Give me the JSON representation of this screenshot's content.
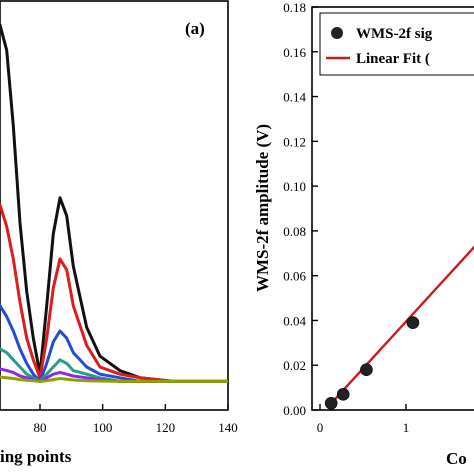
{
  "chart_data": [
    {
      "type": "line",
      "panel_label": "(a)",
      "xlabel": "ing points",
      "x_ticks": [
        "80",
        "100",
        "120",
        "140"
      ],
      "xlim": [
        60,
        140
      ],
      "ylim": [
        0,
        1
      ],
      "grid": false,
      "series": [
        {
          "color": "#111111",
          "x": [
            60,
            62,
            64,
            66,
            68,
            70,
            72,
            74,
            76,
            78,
            80,
            82,
            84,
            86,
            88,
            90,
            94,
            98,
            104,
            110,
            120,
            130,
            140
          ],
          "y": [
            0.68,
            0.8,
            0.92,
            0.99,
            1.0,
            0.93,
            0.72,
            0.45,
            0.26,
            0.13,
            0.03,
            0.22,
            0.42,
            0.52,
            0.47,
            0.33,
            0.16,
            0.08,
            0.04,
            0.02,
            0.01,
            0.01,
            0.01
          ]
        },
        {
          "color": "#dd1c1c",
          "x": [
            60,
            62,
            64,
            66,
            68,
            70,
            72,
            74,
            76,
            78,
            80,
            82,
            84,
            86,
            88,
            90,
            94,
            98,
            104,
            110,
            120,
            130,
            140
          ],
          "y": [
            0.33,
            0.38,
            0.46,
            0.5,
            0.5,
            0.44,
            0.35,
            0.23,
            0.13,
            0.07,
            0.02,
            0.13,
            0.27,
            0.35,
            0.32,
            0.22,
            0.11,
            0.05,
            0.03,
            0.02,
            0.01,
            0.01,
            0.01
          ]
        },
        {
          "color": "#2848d8",
          "x": [
            60,
            62,
            64,
            66,
            68,
            70,
            72,
            74,
            76,
            78,
            80,
            82,
            84,
            86,
            88,
            90,
            94,
            98,
            104,
            110,
            120,
            130,
            140
          ],
          "y": [
            0.14,
            0.16,
            0.19,
            0.22,
            0.22,
            0.19,
            0.15,
            0.1,
            0.06,
            0.03,
            0.01,
            0.06,
            0.12,
            0.15,
            0.13,
            0.09,
            0.05,
            0.03,
            0.02,
            0.01,
            0.01,
            0.01,
            0.01
          ]
        },
        {
          "color": "#2a9a8c",
          "x": [
            60,
            62,
            64,
            66,
            68,
            70,
            72,
            74,
            76,
            78,
            80,
            82,
            84,
            86,
            88,
            90,
            94,
            98,
            104,
            110,
            120,
            130,
            140
          ],
          "y": [
            0.07,
            0.08,
            0.09,
            0.1,
            0.1,
            0.09,
            0.07,
            0.05,
            0.03,
            0.02,
            0.01,
            0.03,
            0.05,
            0.07,
            0.06,
            0.04,
            0.03,
            0.02,
            0.01,
            0.01,
            0.01,
            0.01,
            0.01
          ]
        },
        {
          "color": "#8a2be2",
          "x": [
            60,
            62,
            64,
            66,
            68,
            70,
            72,
            74,
            76,
            78,
            80,
            82,
            84,
            86,
            88,
            90,
            94,
            98,
            104,
            110,
            120,
            130,
            140
          ],
          "y": [
            0.03,
            0.035,
            0.04,
            0.045,
            0.045,
            0.04,
            0.035,
            0.025,
            0.02,
            0.015,
            0.01,
            0.02,
            0.03,
            0.035,
            0.03,
            0.025,
            0.02,
            0.015,
            0.01,
            0.01,
            0.01,
            0.01,
            0.01
          ]
        },
        {
          "color": "#8fa000",
          "x": [
            60,
            62,
            64,
            66,
            68,
            70,
            72,
            74,
            76,
            78,
            80,
            82,
            84,
            86,
            88,
            90,
            94,
            98,
            104,
            110,
            120,
            130,
            140
          ],
          "y": [
            0.015,
            0.018,
            0.02,
            0.022,
            0.022,
            0.02,
            0.018,
            0.015,
            0.013,
            0.012,
            0.01,
            0.012,
            0.015,
            0.018,
            0.016,
            0.014,
            0.012,
            0.011,
            0.01,
            0.01,
            0.01,
            0.01,
            0.01
          ]
        }
      ]
    },
    {
      "type": "scatter",
      "ylabel": "WMS-2f amplitude (V)",
      "xlabel": "Co",
      "xlim": [
        0,
        2.1
      ],
      "ylim": [
        0,
        0.18
      ],
      "y_ticks": [
        "0.00",
        "0.02",
        "0.04",
        "0.06",
        "0.08",
        "0.10",
        "0.12",
        "0.14",
        "0.16",
        "0.18"
      ],
      "x_ticks": [
        "0",
        "1"
      ],
      "grid": false,
      "legend": {
        "placement": "top-right",
        "entries": [
          "WMS-2f sig",
          "Linear Fit ("
        ]
      },
      "points": {
        "x": [
          0.13,
          0.27,
          0.54,
          1.08
        ],
        "y": [
          0.003,
          0.007,
          0.018,
          0.039
        ]
      },
      "fit_line": {
        "color": "#cc1a1a",
        "x": [
          0.1,
          2.1
        ],
        "y": [
          0.0017,
          0.0857
        ]
      },
      "colors": {
        "points": "#222222",
        "fit": "#cc1a1a"
      }
    }
  ]
}
